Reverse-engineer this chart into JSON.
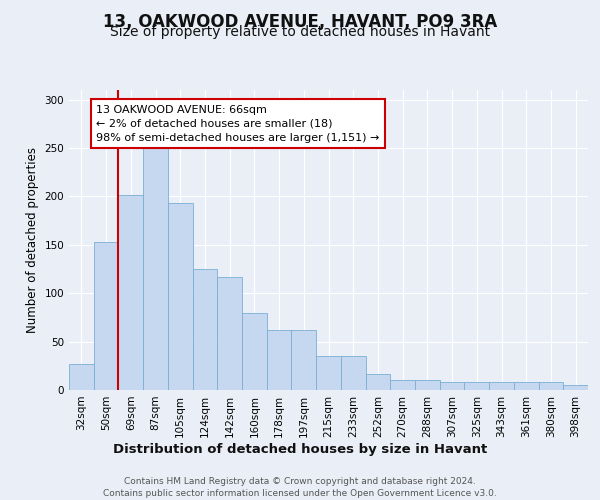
{
  "title_line1": "13, OAKWOOD AVENUE, HAVANT, PO9 3RA",
  "title_line2": "Size of property relative to detached houses in Havant",
  "xlabel": "Distribution of detached houses by size in Havant",
  "ylabel": "Number of detached properties",
  "categories": [
    "32sqm",
    "50sqm",
    "69sqm",
    "87sqm",
    "105sqm",
    "124sqm",
    "142sqm",
    "160sqm",
    "178sqm",
    "197sqm",
    "215sqm",
    "233sqm",
    "252sqm",
    "270sqm",
    "288sqm",
    "307sqm",
    "325sqm",
    "343sqm",
    "361sqm",
    "380sqm",
    "398sqm"
  ],
  "values": [
    27,
    153,
    202,
    250,
    193,
    125,
    117,
    80,
    62,
    62,
    35,
    35,
    17,
    10,
    10,
    8,
    8,
    8,
    8,
    8,
    5
  ],
  "bar_color": "#c5d8f0",
  "bar_edge_color": "#7aafd4",
  "vline_color": "#cc0000",
  "vline_x_index": 2,
  "annotation_text": "13 OAKWOOD AVENUE: 66sqm\n← 2% of detached houses are smaller (18)\n98% of semi-detached houses are larger (1,151) →",
  "annotation_box_facecolor": "#ffffff",
  "annotation_box_edgecolor": "#cc0000",
  "ylim": [
    0,
    310
  ],
  "yticks": [
    0,
    50,
    100,
    150,
    200,
    250,
    300
  ],
  "bg_color": "#eaeff7",
  "plot_bg_color": "#eaeff7",
  "footnote": "Contains HM Land Registry data © Crown copyright and database right 2024.\nContains public sector information licensed under the Open Government Licence v3.0.",
  "title_fontsize": 12,
  "subtitle_fontsize": 10,
  "xlabel_fontsize": 9.5,
  "ylabel_fontsize": 8.5,
  "tick_fontsize": 7.5,
  "annot_fontsize": 8,
  "footnote_fontsize": 6.5
}
